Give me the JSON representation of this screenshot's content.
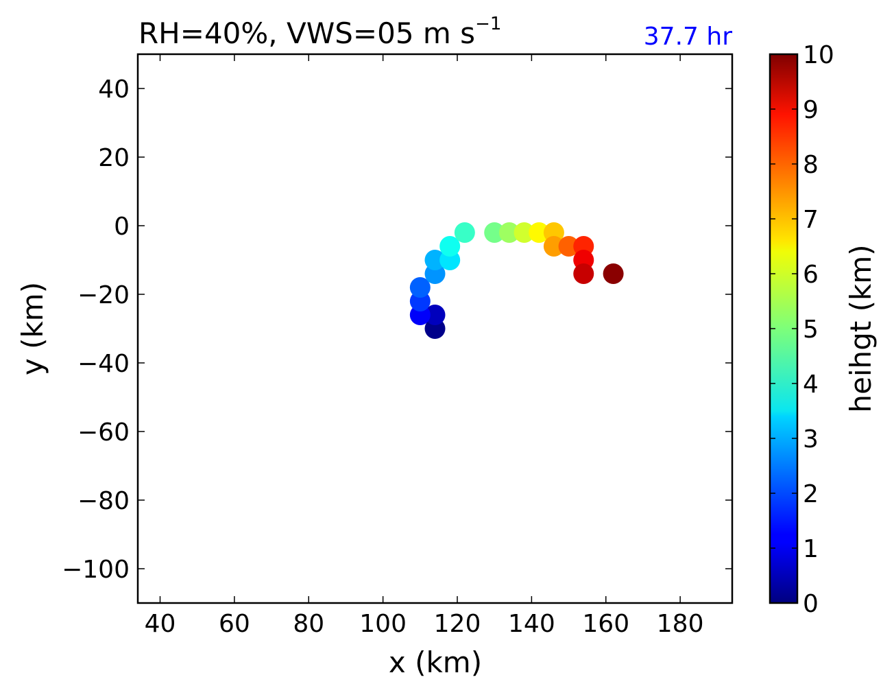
{
  "chart_data": {
    "type": "scatter",
    "title_main": "RH=40%, VWS=05 m s",
    "title_sup": "−1",
    "time_label": "37.7 hr",
    "xlabel": "x (km)",
    "ylabel": "y (km)",
    "xlim": [
      34,
      194
    ],
    "ylim": [
      -110,
      50
    ],
    "xticks": [
      40,
      60,
      80,
      100,
      120,
      140,
      160,
      180
    ],
    "yticks": [
      40,
      20,
      0,
      -20,
      -40,
      -60,
      -80,
      -100
    ],
    "ytick_labels": [
      "40",
      "20",
      "0",
      "−20",
      "−40",
      "−60",
      "−80",
      "−100"
    ],
    "colorbar": {
      "label": "heihgt (km)",
      "range": [
        0,
        10
      ],
      "ticks": [
        0,
        1,
        2,
        3,
        4,
        5,
        6,
        7,
        8,
        9,
        10
      ],
      "colormap": "jet"
    },
    "points": [
      {
        "x": 114,
        "y": -30,
        "height": 0.1
      },
      {
        "x": 114,
        "y": -26,
        "height": 0.6
      },
      {
        "x": 110,
        "y": -26,
        "height": 1.2
      },
      {
        "x": 110,
        "y": -22,
        "height": 1.8
      },
      {
        "x": 110,
        "y": -18,
        "height": 2.2
      },
      {
        "x": 114,
        "y": -14,
        "height": 2.7
      },
      {
        "x": 114,
        "y": -10,
        "height": 3.0
      },
      {
        "x": 118,
        "y": -10,
        "height": 3.5
      },
      {
        "x": 118,
        "y": -6,
        "height": 3.9
      },
      {
        "x": 122,
        "y": -2,
        "height": 4.3
      },
      {
        "x": 130,
        "y": -2,
        "height": 4.9
      },
      {
        "x": 134,
        "y": -2,
        "height": 5.3
      },
      {
        "x": 138,
        "y": -2,
        "height": 5.8
      },
      {
        "x": 142,
        "y": -2,
        "height": 6.3
      },
      {
        "x": 146,
        "y": -2,
        "height": 6.8
      },
      {
        "x": 146,
        "y": -6,
        "height": 7.2
      },
      {
        "x": 150,
        "y": -6,
        "height": 7.8
      },
      {
        "x": 154,
        "y": -6,
        "height": 8.4
      },
      {
        "x": 154,
        "y": -10,
        "height": 8.9
      },
      {
        "x": 154,
        "y": -14,
        "height": 9.3
      },
      {
        "x": 162,
        "y": -14,
        "height": 9.9
      }
    ]
  }
}
